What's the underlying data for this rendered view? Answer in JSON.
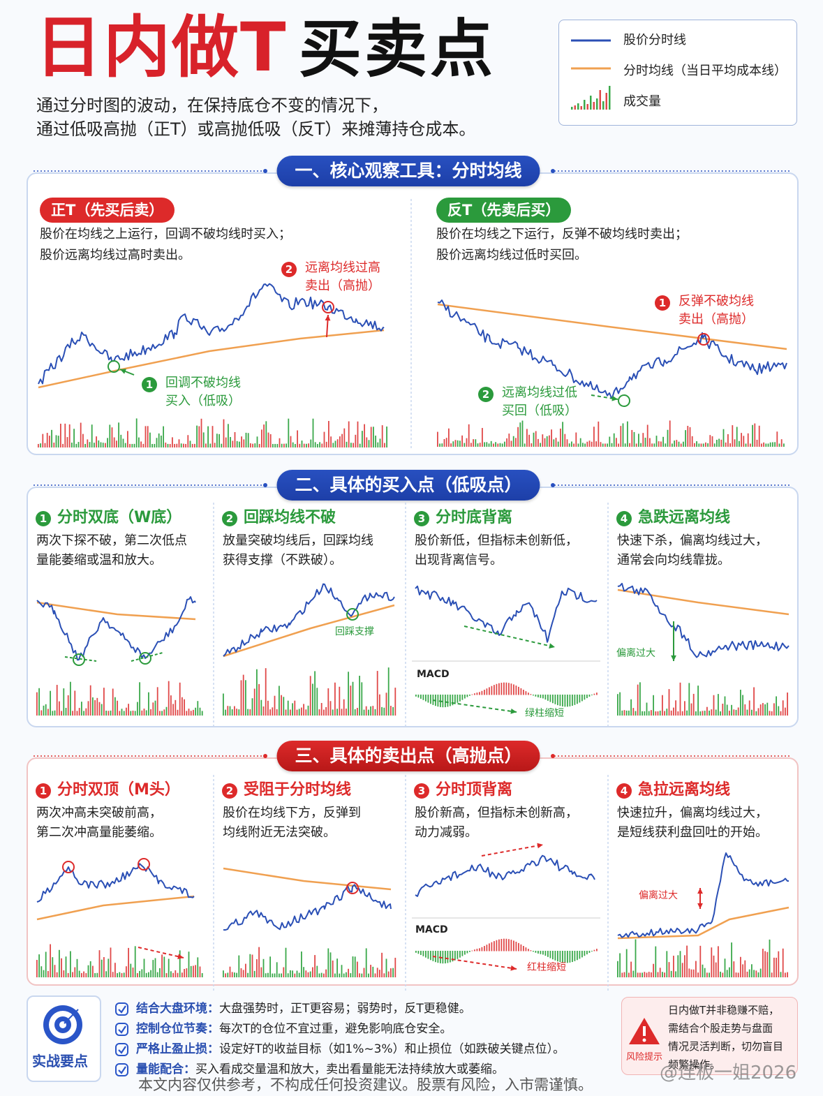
{
  "header": {
    "title_red": "日内做T",
    "title_black": "买卖点",
    "subtitle": [
      "通过分时图的波动，在保持底仓不变的情况下，",
      "通过低吸高抛（正T）或高抛低吸（反T）来摊薄持仓成本。"
    ]
  },
  "legend": {
    "items": [
      "股价分时线",
      "分时均线（当日平均成本线）",
      "成交量"
    ]
  },
  "section1": {
    "title": "一、核心观察工具：分时均线",
    "panels": [
      {
        "tag": "正T（先买后卖）",
        "desc": [
          "股价在均线之上运行，回调不破均线时买入；",
          "股价远离均线过高时卖出。"
        ],
        "notes": [
          {
            "num": "2",
            "lines": [
              "远离均线过高",
              "卖出（高抛）"
            ]
          },
          {
            "num": "1",
            "lines": [
              "回调不破均线",
              "买入（低吸）"
            ]
          }
        ]
      },
      {
        "tag": "反T（先卖后买）",
        "desc": [
          "股价在均线之下运行，反弹不破均线时卖出；",
          "股价远离均线过低时买回。"
        ],
        "notes": [
          {
            "num": "1",
            "lines": [
              "反弹不破均线",
              "卖出（高抛）"
            ]
          },
          {
            "num": "2",
            "lines": [
              "远离均线过低",
              "买回（低吸）"
            ]
          }
        ]
      }
    ]
  },
  "section2": {
    "title": "二、具体的买入点（低吸点）",
    "panels": [
      {
        "num": "1",
        "title": "分时双底（W底）",
        "desc": [
          "两次下探不破，第二次低点",
          "量能萎缩或温和放大。"
        ],
        "notes": []
      },
      {
        "num": "2",
        "title": "回踩均线不破",
        "desc": [
          "放量突破均线后，回踩均线",
          "获得支撑（不跌破）。"
        ],
        "notes": [
          "回踩支撑"
        ]
      },
      {
        "num": "3",
        "title": "分时底背离",
        "desc": [
          "股价新低，但指标未创新低，",
          "出现背离信号。"
        ],
        "notes": [
          "MACD",
          "绿柱缩短"
        ]
      },
      {
        "num": "4",
        "title": "急跌远离均线",
        "desc": [
          "快速下杀，偏离均线过大，",
          "通常会向均线靠拢。"
        ],
        "notes": [
          "偏离过大"
        ]
      }
    ]
  },
  "section3": {
    "title": "三、具体的卖出点（高抛点）",
    "panels": [
      {
        "num": "1",
        "title": "分时双顶（M头）",
        "desc": [
          "两次冲高未突破前高，",
          "第二次冲高量能萎缩。"
        ],
        "notes": []
      },
      {
        "num": "2",
        "title": "受阻于分时均线",
        "desc": [
          "股价在均线下方，反弹到",
          "均线附近无法突破。"
        ],
        "notes": []
      },
      {
        "num": "3",
        "title": "分时顶背离",
        "desc": [
          "股价新高，但指标未创新高，",
          "动力减弱。"
        ],
        "notes": [
          "MACD",
          "红柱缩短"
        ]
      },
      {
        "num": "4",
        "title": "急拉远离均线",
        "desc": [
          "快速拉升，偏离均线过大，",
          "是短线获利盘回吐的开始。"
        ],
        "notes": [
          "偏离过大"
        ]
      }
    ]
  },
  "tips": {
    "badge": "实战要点",
    "items": [
      {
        "label": "结合大盘环境：",
        "text": "大盘强势时，正T更容易；弱势时，反T更稳健。"
      },
      {
        "label": "控制仓位节奏：",
        "text": "每次T的仓位不宜过重，避免影响底仓安全。"
      },
      {
        "label": "严格止盈止损：",
        "text": "设定好T的收益目标（如1%~3%）和止损位（如跌破关键点位）。"
      },
      {
        "label": "量能配合：",
        "text": "买入看成交量温和放大，卖出看量能无法持续放大或萎缩。"
      }
    ]
  },
  "risk": {
    "label": "风险提示",
    "lines": [
      "日内做T并非稳赚不赔，",
      "需结合个股走势与盘面",
      "情况灵活判断，切勿盲目",
      "频繁操作。"
    ]
  },
  "footer": {
    "disclaimer": "本文内容仅供参考，不构成任何投资建议。股票有风险，入市需谨慎。",
    "watermark": "@连板一姐2026"
  }
}
